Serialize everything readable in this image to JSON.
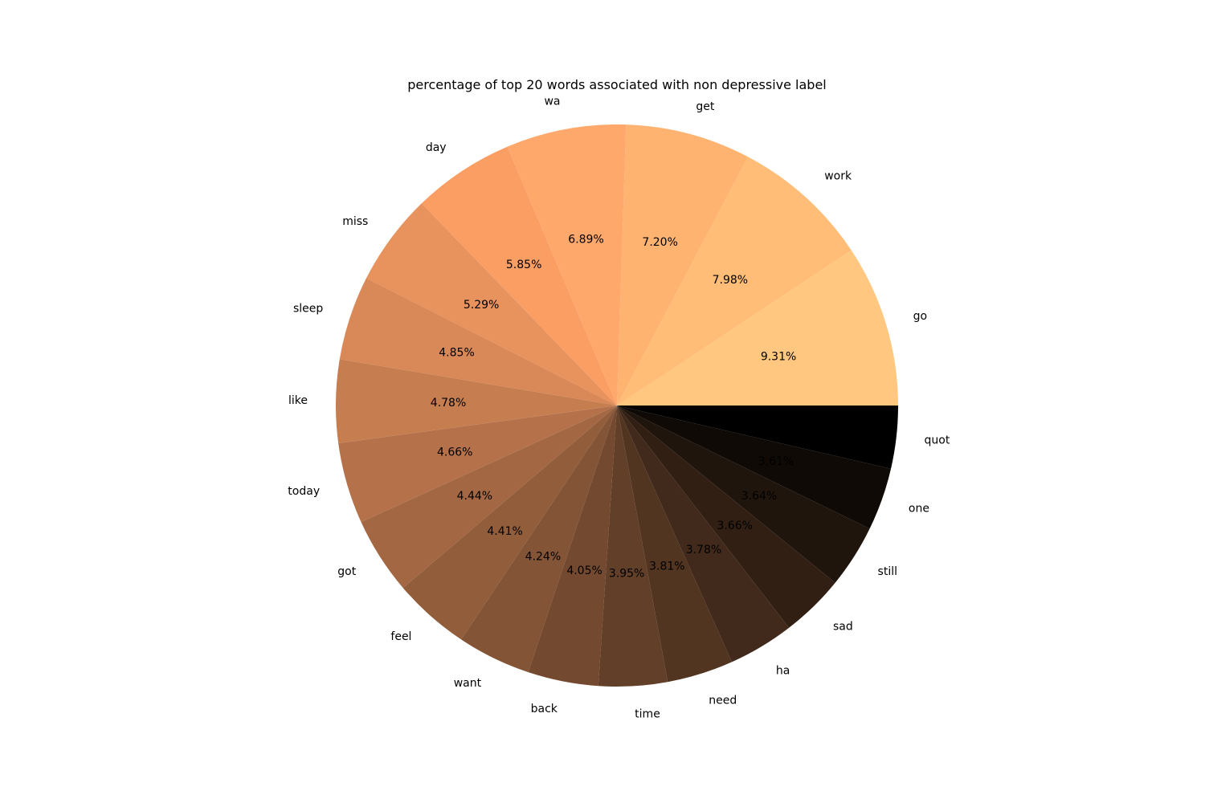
{
  "chart_data": {
    "type": "pie",
    "title": "percentage of top 20 words associated with non depressive label",
    "start_angle_deg": 0,
    "direction": "counterclockwise",
    "colormap": "copper_r",
    "slices": [
      {
        "label": "go",
        "value": 9.31,
        "pct_label": "9.31%",
        "color": "#ffc77f"
      },
      {
        "label": "work",
        "value": 7.98,
        "pct_label": "7.98%",
        "color": "#ffbd78"
      },
      {
        "label": "get",
        "value": 7.2,
        "pct_label": "7.20%",
        "color": "#ffb371"
      },
      {
        "label": "wa",
        "value": 6.89,
        "pct_label": "6.89%",
        "color": "#ffa86b"
      },
      {
        "label": "day",
        "value": 5.85,
        "pct_label": "5.85%",
        "color": "#fa9e64"
      },
      {
        "label": "miss",
        "value": 5.29,
        "pct_label": "5.29%",
        "color": "#e8925d"
      },
      {
        "label": "sleep",
        "value": 4.85,
        "pct_label": "4.85%",
        "color": "#d98857"
      },
      {
        "label": "like",
        "value": 4.78,
        "pct_label": "4.78%",
        "color": "#c67d50"
      },
      {
        "label": "today",
        "value": 4.66,
        "pct_label": "4.66%",
        "color": "#b5724a"
      },
      {
        "label": "got",
        "value": 4.44,
        "pct_label": "4.44%",
        "color": "#a36843"
      },
      {
        "label": "feel",
        "value": 4.41,
        "pct_label": "4.41%",
        "color": "#925d3b"
      },
      {
        "label": "want",
        "value": 4.24,
        "pct_label": "4.24%",
        "color": "#845436"
      },
      {
        "label": "back",
        "value": 4.05,
        "pct_label": "4.05%",
        "color": "#734930"
      },
      {
        "label": "time",
        "value": 3.95,
        "pct_label": "3.95%",
        "color": "#623f29"
      },
      {
        "label": "need",
        "value": 3.81,
        "pct_label": "3.81%",
        "color": "#513521"
      },
      {
        "label": "ha",
        "value": 3.78,
        "pct_label": "3.78%",
        "color": "#412a1b"
      },
      {
        "label": "sad",
        "value": 3.66,
        "pct_label": "3.66%",
        "color": "#311f14"
      },
      {
        "label": "still",
        "value": 3.64,
        "pct_label": "3.64%",
        "color": "#20150d"
      },
      {
        "label": "one",
        "value": 3.61,
        "pct_label": "3.61%",
        "color": "#0f0a06"
      },
      {
        "label": "quot",
        "value": 3.61,
        "pct_label": "",
        "color": "#000000"
      }
    ]
  }
}
